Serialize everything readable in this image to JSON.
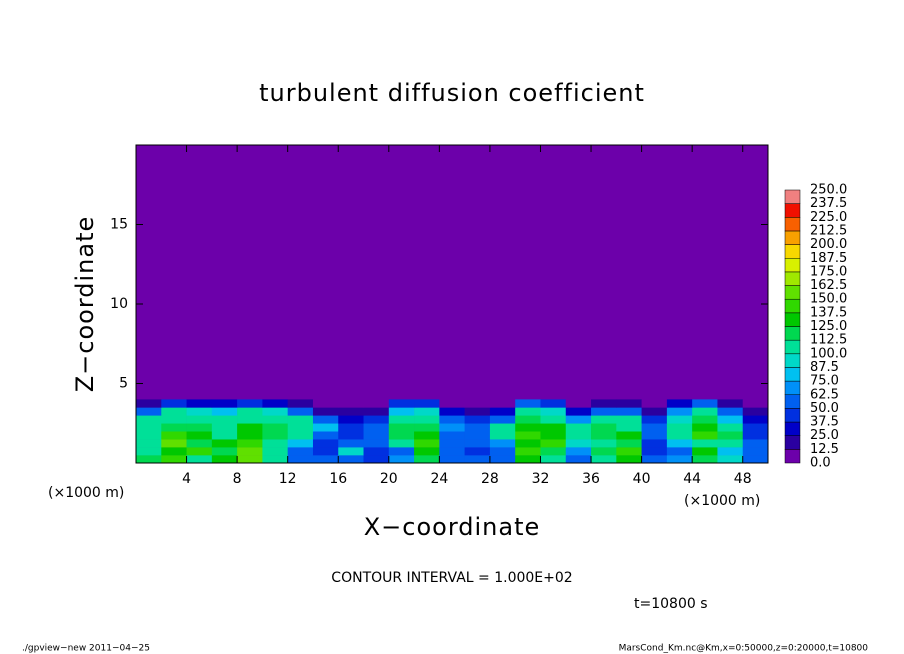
{
  "chart_data": {
    "type": "contour",
    "title": "turbulent diffusion coefficient",
    "x_label": "X−coordinate",
    "y_label": "Z−coordinate",
    "x_unit_left": "(×1000 m)",
    "x_unit_right": "(×1000 m)",
    "contour_interval": "CONTOUR INTERVAL = 1.000E+02",
    "time_label": "t=10800 s",
    "footer_left": "./gpview−new   2011−04−25",
    "footer_right": "MarsCond_Km.nc@Km,x=0:50000,z=0:20000,t=10800",
    "xlim": [
      0,
      50
    ],
    "ylim": [
      0,
      20
    ],
    "xticks": [
      4,
      8,
      12,
      16,
      20,
      24,
      28,
      32,
      36,
      40,
      44,
      48
    ],
    "yticks": [
      5,
      10,
      15
    ],
    "x": [
      1,
      3,
      5,
      7,
      9,
      11,
      13,
      15,
      17,
      19,
      21,
      23,
      25,
      27,
      29,
      31,
      33,
      35,
      37,
      39,
      41,
      43,
      45,
      47,
      49
    ],
    "z": [
      0.25,
      0.75,
      1.25,
      1.75,
      2.25,
      2.75,
      3.25,
      3.75
    ],
    "values": [
      [
        120,
        140,
        110,
        130,
        160,
        110,
        60,
        50,
        55,
        40,
        70,
        120,
        60,
        50,
        55,
        130,
        110,
        60,
        110,
        130,
        50,
        70,
        120,
        90,
        60
      ],
      [
        110,
        130,
        140,
        120,
        150,
        100,
        60,
        45,
        90,
        40,
        60,
        130,
        50,
        45,
        60,
        140,
        120,
        70,
        120,
        140,
        45,
        60,
        130,
        80,
        50
      ],
      [
        100,
        150,
        120,
        130,
        140,
        110,
        80,
        40,
        60,
        50,
        110,
        140,
        55,
        50,
        70,
        130,
        140,
        90,
        110,
        120,
        40,
        80,
        110,
        100,
        50
      ],
      [
        110,
        140,
        130,
        110,
        130,
        120,
        110,
        60,
        40,
        55,
        120,
        130,
        60,
        55,
        110,
        140,
        130,
        110,
        120,
        130,
        50,
        110,
        140,
        120,
        40
      ],
      [
        105,
        120,
        115,
        110,
        125,
        115,
        110,
        80,
        40,
        50,
        115,
        120,
        70,
        60,
        100,
        130,
        125,
        105,
        115,
        110,
        60,
        100,
        135,
        110,
        45
      ],
      [
        100,
        110,
        105,
        100,
        110,
        105,
        100,
        50,
        30,
        45,
        105,
        110,
        55,
        40,
        60,
        120,
        110,
        65,
        105,
        100,
        40,
        90,
        120,
        80,
        30
      ],
      [
        60,
        110,
        90,
        80,
        100,
        90,
        60,
        20,
        15,
        20,
        80,
        90,
        30,
        20,
        30,
        100,
        90,
        30,
        60,
        50,
        20,
        70,
        100,
        50,
        20
      ],
      [
        20,
        40,
        30,
        30,
        40,
        30,
        20,
        5,
        5,
        10,
        40,
        40,
        10,
        5,
        10,
        50,
        40,
        10,
        20,
        15,
        5,
        30,
        50,
        15,
        5
      ]
    ],
    "levels": [
      {
        "value": 0,
        "label": "0.0"
      },
      {
        "value": 12.5,
        "label": "12.5"
      },
      {
        "value": 25,
        "label": "25.0"
      },
      {
        "value": 37.5,
        "label": "37.5"
      },
      {
        "value": 50,
        "label": "50.0"
      },
      {
        "value": 62.5,
        "label": "62.5"
      },
      {
        "value": 75,
        "label": "75.0"
      },
      {
        "value": 87.5,
        "label": "87.5"
      },
      {
        "value": 100,
        "label": "100.0"
      },
      {
        "value": 112.5,
        "label": "112.5"
      },
      {
        "value": 125,
        "label": "125.0"
      },
      {
        "value": 137.5,
        "label": "137.5"
      },
      {
        "value": 150,
        "label": "150.0"
      },
      {
        "value": 162.5,
        "label": "162.5"
      },
      {
        "value": 175,
        "label": "175.0"
      },
      {
        "value": 187.5,
        "label": "187.5"
      },
      {
        "value": 200,
        "label": "200.0"
      },
      {
        "value": 212.5,
        "label": "212.5"
      },
      {
        "value": 225,
        "label": "225.0"
      },
      {
        "value": 237.5,
        "label": "237.5"
      },
      {
        "value": 250,
        "label": "250.0"
      }
    ],
    "colors": [
      "#6c00aa",
      "#2a00a0",
      "#0000c8",
      "#0030e0",
      "#0060f0",
      "#0090f8",
      "#00c0f0",
      "#00d8c8",
      "#00e098",
      "#00d850",
      "#00c800",
      "#30d800",
      "#60e000",
      "#a0e800",
      "#d8f000",
      "#f8d800",
      "#f8a000",
      "#f86000",
      "#f01000",
      "#f08080"
    ]
  }
}
